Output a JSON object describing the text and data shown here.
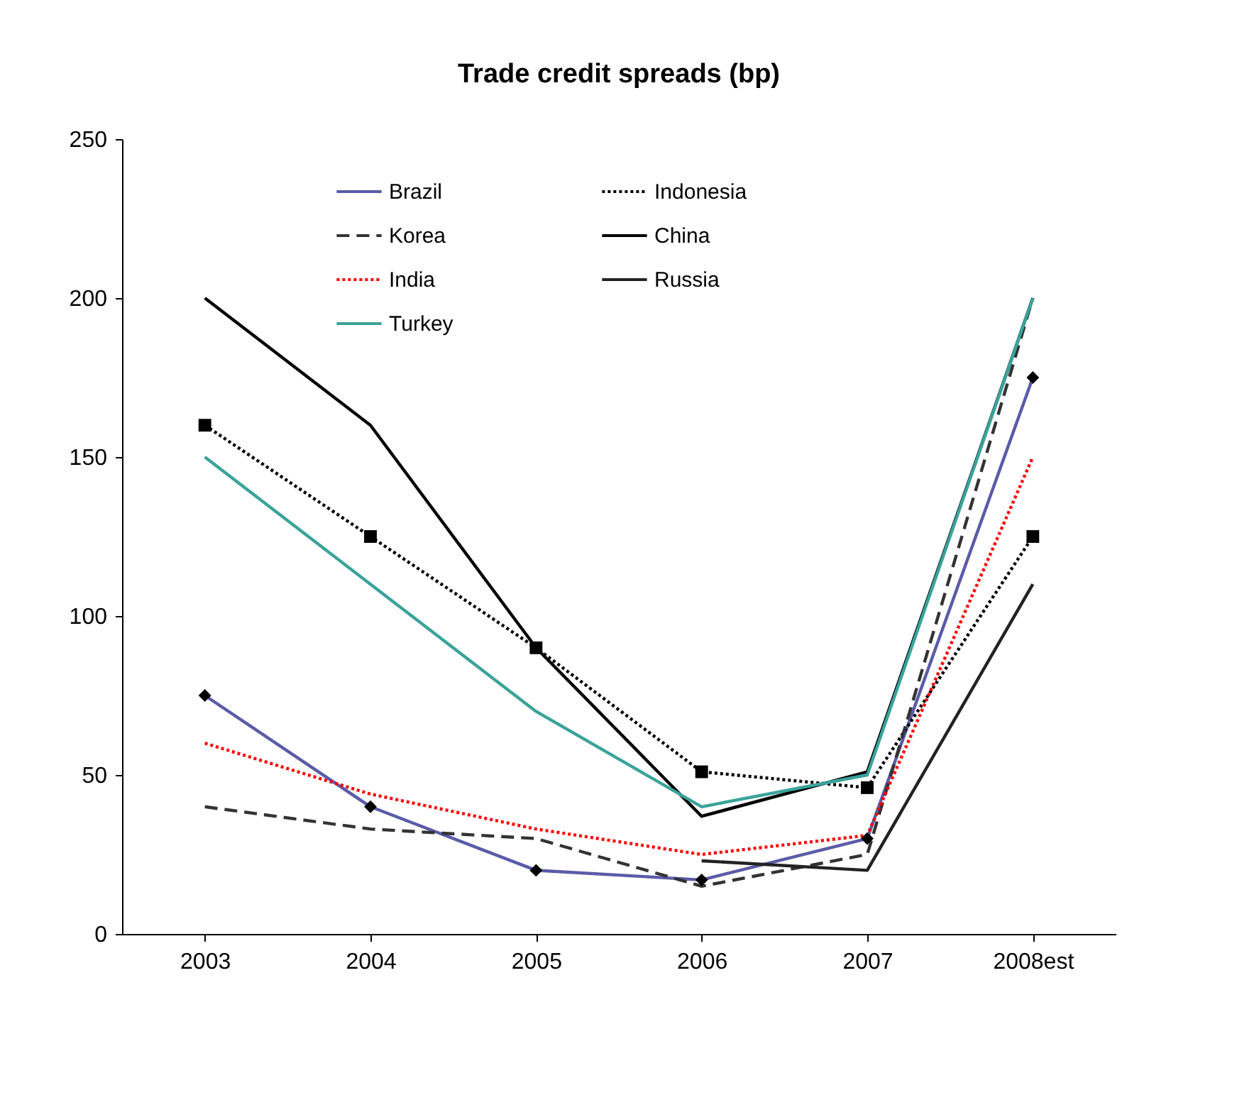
{
  "chart_data": {
    "type": "line",
    "title": "Trade credit spreads (bp)",
    "categories": [
      "2003",
      "2004",
      "2005",
      "2006",
      "2007",
      "2008est"
    ],
    "ylim": [
      0,
      250
    ],
    "yticks": [
      0,
      50,
      100,
      150,
      200,
      250
    ],
    "grid": false,
    "legend": "top",
    "series": [
      {
        "name": "Brazil",
        "color": "#5b5ba8",
        "line_style": "solid",
        "marker": "diamond",
        "values": [
          75,
          40,
          20,
          17,
          30,
          175
        ]
      },
      {
        "name": "Indonesia",
        "color": "#000000",
        "line_style": "dotted",
        "marker": "square",
        "values": [
          160,
          125,
          90,
          51,
          46,
          125
        ]
      },
      {
        "name": "Korea",
        "color": "#333333",
        "line_style": "dashed",
        "marker": "none",
        "values": [
          40,
          33,
          30,
          15,
          25,
          200
        ]
      },
      {
        "name": "China",
        "color": "#000000",
        "line_style": "solid",
        "marker": "none",
        "values": [
          200,
          160,
          90,
          37,
          51,
          200
        ]
      },
      {
        "name": "India",
        "color": "#ff0000",
        "line_style": "dotted",
        "marker": "none",
        "values": [
          60,
          44,
          33,
          25,
          31,
          150
        ]
      },
      {
        "name": "Russia",
        "color": "#222222",
        "line_style": "solid",
        "marker": "none",
        "values": [
          null,
          null,
          null,
          23,
          20,
          110
        ]
      },
      {
        "name": "Turkey",
        "color": "#3aa39a",
        "line_style": "solid",
        "marker": "none",
        "values": [
          150,
          110,
          70,
          40,
          50,
          200
        ]
      }
    ]
  }
}
